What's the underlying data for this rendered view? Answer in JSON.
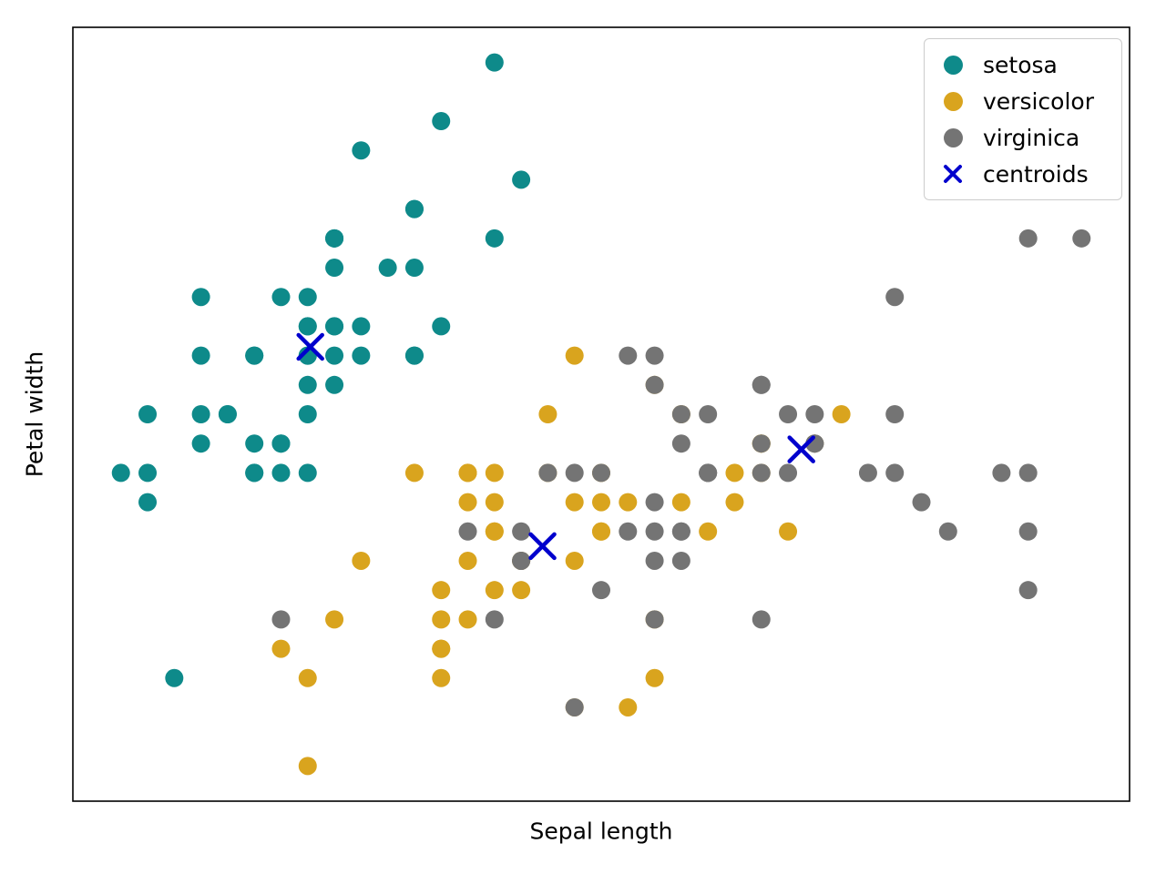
{
  "chart_data": {
    "type": "scatter",
    "title": "",
    "xlabel": "Sepal length",
    "ylabel": "Petal width",
    "xlim": [
      4.12,
      8.08
    ],
    "ylim": [
      1.88,
      4.52
    ],
    "grid": false,
    "legend_position": "upper right",
    "marker_radius_px": 10,
    "series": [
      {
        "name": "setosa",
        "marker": "circle",
        "color": "#0e8a8a",
        "points": [
          [
            5.1,
            3.5
          ],
          [
            4.9,
            3.0
          ],
          [
            4.7,
            3.2
          ],
          [
            4.6,
            3.1
          ],
          [
            5.0,
            3.6
          ],
          [
            5.4,
            3.9
          ],
          [
            4.6,
            3.4
          ],
          [
            5.0,
            3.4
          ],
          [
            4.4,
            2.9
          ],
          [
            4.9,
            3.1
          ],
          [
            5.4,
            3.7
          ],
          [
            4.8,
            3.4
          ],
          [
            4.8,
            3.0
          ],
          [
            4.3,
            3.0
          ],
          [
            5.8,
            4.0
          ],
          [
            5.7,
            4.4
          ],
          [
            5.4,
            3.9
          ],
          [
            5.1,
            3.5
          ],
          [
            5.7,
            3.8
          ],
          [
            5.1,
            3.8
          ],
          [
            5.4,
            3.4
          ],
          [
            5.1,
            3.7
          ],
          [
            4.6,
            3.6
          ],
          [
            5.1,
            3.3
          ],
          [
            4.8,
            3.4
          ],
          [
            5.0,
            3.0
          ],
          [
            5.0,
            3.4
          ],
          [
            5.2,
            3.5
          ],
          [
            5.2,
            3.4
          ],
          [
            4.7,
            3.2
          ],
          [
            4.8,
            3.1
          ],
          [
            5.4,
            3.4
          ],
          [
            5.2,
            4.1
          ],
          [
            5.5,
            4.2
          ],
          [
            4.9,
            3.1
          ],
          [
            5.0,
            3.2
          ],
          [
            5.5,
            3.5
          ],
          [
            4.9,
            3.6
          ],
          [
            4.4,
            3.0
          ],
          [
            5.1,
            3.4
          ],
          [
            5.0,
            3.5
          ],
          [
            4.5,
            2.3
          ],
          [
            4.4,
            3.2
          ],
          [
            5.0,
            3.5
          ],
          [
            5.1,
            3.8
          ],
          [
            4.8,
            3.0
          ],
          [
            5.1,
            3.8
          ],
          [
            4.6,
            3.2
          ],
          [
            5.3,
            3.7
          ],
          [
            5.0,
            3.3
          ]
        ]
      },
      {
        "name": "versicolor",
        "marker": "circle",
        "color": "#d9a41e",
        "points": [
          [
            7.0,
            3.2
          ],
          [
            6.4,
            3.2
          ],
          [
            6.9,
            3.1
          ],
          [
            5.5,
            2.3
          ],
          [
            6.5,
            2.8
          ],
          [
            5.7,
            2.8
          ],
          [
            6.3,
            3.3
          ],
          [
            4.9,
            2.4
          ],
          [
            6.6,
            2.9
          ],
          [
            5.2,
            2.7
          ],
          [
            5.0,
            2.0
          ],
          [
            5.9,
            3.0
          ],
          [
            6.0,
            2.2
          ],
          [
            6.1,
            2.9
          ],
          [
            5.6,
            2.9
          ],
          [
            6.7,
            3.1
          ],
          [
            5.6,
            3.0
          ],
          [
            5.8,
            2.7
          ],
          [
            6.2,
            2.2
          ],
          [
            5.6,
            2.5
          ],
          [
            5.9,
            3.2
          ],
          [
            6.1,
            2.8
          ],
          [
            6.3,
            2.5
          ],
          [
            6.1,
            2.8
          ],
          [
            6.4,
            2.9
          ],
          [
            6.6,
            3.0
          ],
          [
            6.8,
            2.8
          ],
          [
            6.7,
            3.0
          ],
          [
            6.0,
            2.9
          ],
          [
            5.7,
            2.6
          ],
          [
            5.5,
            2.4
          ],
          [
            5.5,
            2.4
          ],
          [
            5.8,
            2.7
          ],
          [
            6.0,
            2.7
          ],
          [
            5.4,
            3.0
          ],
          [
            6.0,
            3.4
          ],
          [
            6.7,
            3.1
          ],
          [
            6.3,
            2.3
          ],
          [
            5.6,
            3.0
          ],
          [
            5.5,
            2.5
          ],
          [
            5.5,
            2.6
          ],
          [
            6.1,
            3.0
          ],
          [
            5.8,
            2.6
          ],
          [
            5.0,
            2.3
          ],
          [
            5.6,
            2.7
          ],
          [
            5.7,
            3.0
          ],
          [
            5.7,
            2.9
          ],
          [
            6.2,
            2.9
          ],
          [
            5.1,
            2.5
          ],
          [
            5.7,
            2.8
          ]
        ]
      },
      {
        "name": "virginica",
        "marker": "circle",
        "color": "#747474",
        "points": [
          [
            6.3,
            3.3
          ],
          [
            5.8,
            2.7
          ],
          [
            7.1,
            3.0
          ],
          [
            6.3,
            2.9
          ],
          [
            6.5,
            3.0
          ],
          [
            7.6,
            3.0
          ],
          [
            4.9,
            2.5
          ],
          [
            7.3,
            2.9
          ],
          [
            6.7,
            2.5
          ],
          [
            7.2,
            3.6
          ],
          [
            6.5,
            3.2
          ],
          [
            6.4,
            2.7
          ],
          [
            6.8,
            3.0
          ],
          [
            5.7,
            2.5
          ],
          [
            5.8,
            2.8
          ],
          [
            6.4,
            3.2
          ],
          [
            6.5,
            3.0
          ],
          [
            7.7,
            3.8
          ],
          [
            7.7,
            2.6
          ],
          [
            6.0,
            2.2
          ],
          [
            6.9,
            3.2
          ],
          [
            5.6,
            2.8
          ],
          [
            7.7,
            2.8
          ],
          [
            6.3,
            2.7
          ],
          [
            6.7,
            3.3
          ],
          [
            7.2,
            3.2
          ],
          [
            6.2,
            2.8
          ],
          [
            6.1,
            3.0
          ],
          [
            6.4,
            2.8
          ],
          [
            7.2,
            3.0
          ],
          [
            7.4,
            2.8
          ],
          [
            7.9,
            3.8
          ],
          [
            6.4,
            2.8
          ],
          [
            6.3,
            2.8
          ],
          [
            6.1,
            2.6
          ],
          [
            7.7,
            3.0
          ],
          [
            6.3,
            3.4
          ],
          [
            6.4,
            3.1
          ],
          [
            6.0,
            3.0
          ],
          [
            6.9,
            3.1
          ],
          [
            6.7,
            3.1
          ],
          [
            6.9,
            3.1
          ],
          [
            5.8,
            2.7
          ],
          [
            6.8,
            3.2
          ],
          [
            6.7,
            3.3
          ],
          [
            6.7,
            3.0
          ],
          [
            6.3,
            2.5
          ],
          [
            6.5,
            3.0
          ],
          [
            6.2,
            3.4
          ],
          [
            5.9,
            3.0
          ]
        ]
      },
      {
        "name": "centroids",
        "marker": "x",
        "color": "#0000cd",
        "points": [
          [
            5.01,
            3.43
          ],
          [
            5.88,
            2.75
          ],
          [
            6.85,
            3.08
          ]
        ]
      }
    ]
  }
}
